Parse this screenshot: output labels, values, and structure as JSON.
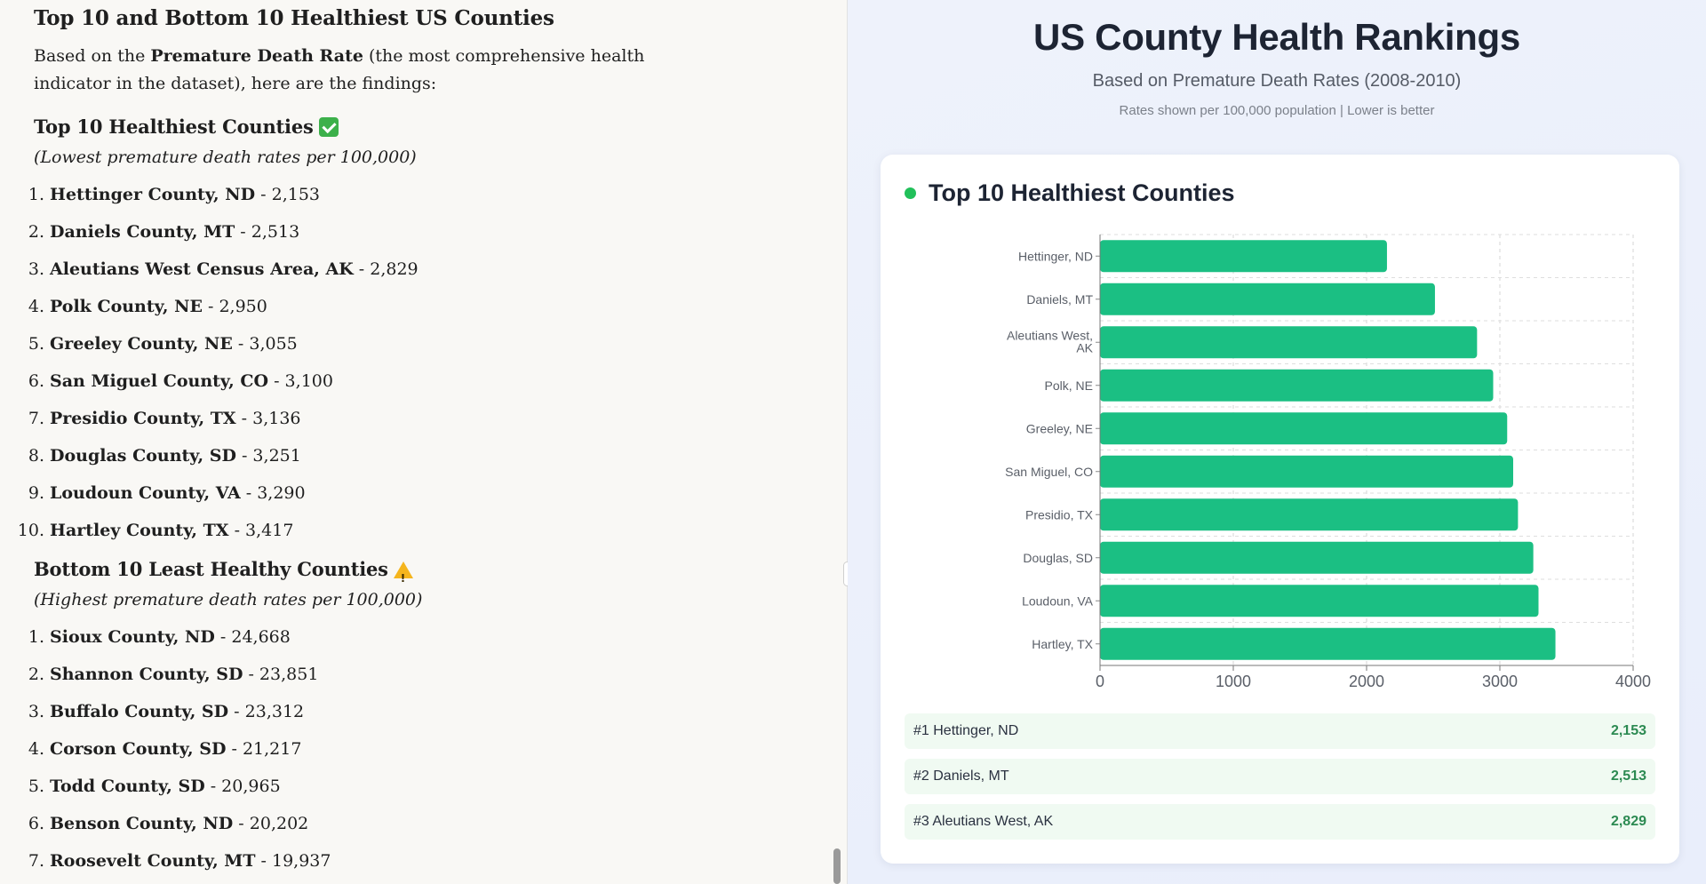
{
  "doc": {
    "heading": "Top 10 and Bottom 10 Healthiest US Counties",
    "intro_prefix": "Based on the ",
    "intro_bold": "Premature Death Rate",
    "intro_suffix": " (the most comprehensive health indicator in the dataset), here are the findings:",
    "top_heading": "Top 10 Healthiest Counties",
    "top_icon": "check-mark-icon",
    "top_sub": "(Lowest premature death rates per 100,000)",
    "top_items": [
      {
        "num": "1.",
        "name": "Hettinger County, ND",
        "value": " - 2,153"
      },
      {
        "num": "2.",
        "name": "Daniels County, MT",
        "value": " - 2,513"
      },
      {
        "num": "3.",
        "name": "Aleutians West Census Area, AK",
        "value": " - 2,829"
      },
      {
        "num": "4.",
        "name": "Polk County, NE",
        "value": " - 2,950"
      },
      {
        "num": "5.",
        "name": "Greeley County, NE",
        "value": " - 3,055"
      },
      {
        "num": "6.",
        "name": "San Miguel County, CO",
        "value": " - 3,100"
      },
      {
        "num": "7.",
        "name": "Presidio County, TX",
        "value": " - 3,136"
      },
      {
        "num": "8.",
        "name": "Douglas County, SD",
        "value": " - 3,251"
      },
      {
        "num": "9.",
        "name": "Loudoun County, VA",
        "value": " - 3,290"
      },
      {
        "num": "10.",
        "name": "Hartley County, TX",
        "value": " - 3,417"
      }
    ],
    "bottom_heading": "Bottom 10 Least Healthy Counties",
    "bottom_icon": "warning-icon",
    "bottom_sub": "(Highest premature death rates per 100,000)",
    "bottom_items": [
      {
        "num": "1.",
        "name": "Sioux County, ND",
        "value": " - 24,668"
      },
      {
        "num": "2.",
        "name": "Shannon County, SD",
        "value": " - 23,851"
      },
      {
        "num": "3.",
        "name": "Buffalo County, SD",
        "value": " - 23,312"
      },
      {
        "num": "4.",
        "name": "Corson County, SD",
        "value": " - 21,217"
      },
      {
        "num": "5.",
        "name": "Todd County, SD",
        "value": " - 20,965"
      },
      {
        "num": "6.",
        "name": "Benson County, ND",
        "value": " - 20,202"
      },
      {
        "num": "7.",
        "name": "Roosevelt County, MT",
        "value": " - 19,937"
      }
    ]
  },
  "panel": {
    "title": "US County Health Rankings",
    "subtitle": "Based on Premature Death Rates (2008-2010)",
    "note": "Rates shown per 100,000 population | Lower is better",
    "card_title": "Top 10 Healthiest Counties",
    "accent": "#21c05a",
    "bar_color": "#1bbf83",
    "ranks": [
      {
        "label": "#1 Hettinger, ND",
        "value": "2,153"
      },
      {
        "label": "#2 Daniels, MT",
        "value": "2,513"
      },
      {
        "label": "#3 Aleutians West, AK",
        "value": "2,829"
      }
    ]
  },
  "chart_data": {
    "type": "bar",
    "orientation": "horizontal",
    "categories": [
      "Hettinger, ND",
      "Daniels, MT",
      "Aleutians West, AK",
      "Polk, NE",
      "Greeley, NE",
      "San Miguel, CO",
      "Presidio, TX",
      "Douglas, SD",
      "Loudoun, VA",
      "Hartley, TX"
    ],
    "category_labels": [
      [
        "Hettinger, ND"
      ],
      [
        "Daniels, MT"
      ],
      [
        "Aleutians West,",
        "AK"
      ],
      [
        "Polk, NE"
      ],
      [
        "Greeley, NE"
      ],
      [
        "San Miguel, CO"
      ],
      [
        "Presidio, TX"
      ],
      [
        "Douglas, SD"
      ],
      [
        "Loudoun, VA"
      ],
      [
        "Hartley, TX"
      ]
    ],
    "values": [
      2153,
      2513,
      2829,
      2950,
      3055,
      3100,
      3136,
      3251,
      3290,
      3417
    ],
    "xlim": [
      0,
      4000
    ],
    "xticks": [
      0,
      1000,
      2000,
      3000,
      4000
    ],
    "title": "Top 10 Healthiest Counties",
    "xlabel": "",
    "ylabel": "",
    "grid": true
  }
}
